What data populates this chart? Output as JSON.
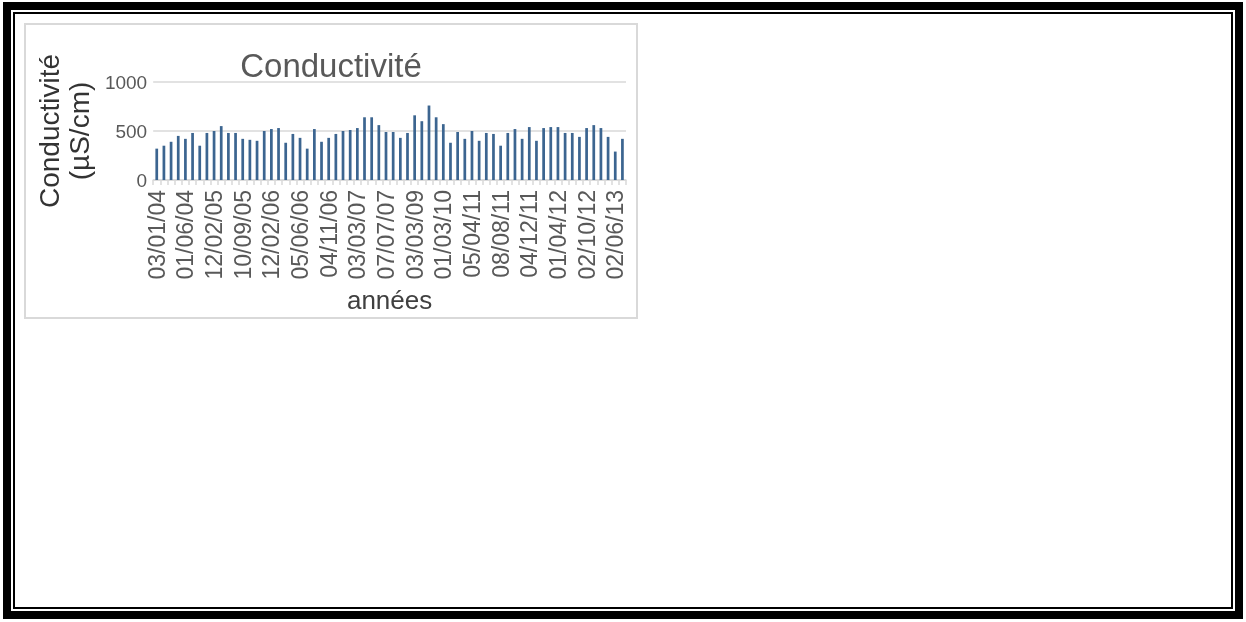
{
  "chart_data": {
    "type": "bar",
    "title": "Conductivité",
    "xlabel": "années",
    "ylabel": "Conductivité (µS/cm)",
    "categories": [
      "03/01/04",
      null,
      null,
      null,
      "01/06/04",
      null,
      null,
      null,
      "12/02/05",
      null,
      null,
      null,
      "10/09/05",
      null,
      null,
      null,
      "12/02/06",
      null,
      null,
      null,
      "05/06/06",
      null,
      null,
      null,
      "04/11/06",
      null,
      null,
      null,
      "03/03/07",
      null,
      null,
      null,
      "07/07/07",
      null,
      null,
      null,
      "03/03/09",
      null,
      null,
      null,
      "01/03/10",
      null,
      null,
      null,
      "05/04/11",
      null,
      null,
      null,
      "08/08/11",
      null,
      null,
      null,
      "04/12/11",
      null,
      null,
      null,
      "01/04/12",
      null,
      null,
      null,
      "02/10/12",
      null,
      null,
      null,
      "02/06/13",
      null
    ],
    "values": [
      320,
      350,
      390,
      450,
      420,
      480,
      350,
      480,
      500,
      550,
      480,
      480,
      420,
      410,
      400,
      500,
      520,
      530,
      380,
      470,
      430,
      320,
      520,
      390,
      430,
      470,
      500,
      510,
      530,
      640,
      640,
      560,
      490,
      490,
      430,
      480,
      660,
      600,
      760,
      640,
      570,
      380,
      490,
      420,
      500,
      400,
      480,
      470,
      350,
      480,
      520,
      420,
      540,
      400,
      530,
      540,
      540,
      480,
      480,
      440,
      530,
      560,
      530,
      440,
      290,
      420
    ],
    "color": "#3c6590",
    "ylim": [
      0,
      1000
    ],
    "yticks": [
      0,
      500,
      1000
    ],
    "grid": "y"
  }
}
